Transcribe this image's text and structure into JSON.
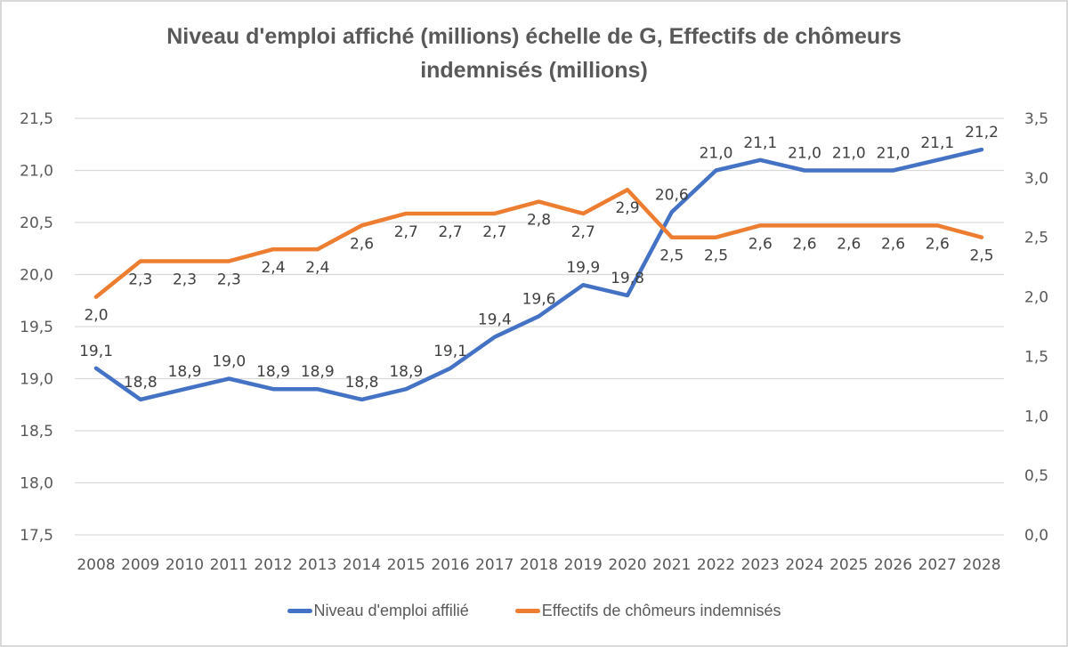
{
  "chart_data": {
    "type": "line",
    "title_lines": [
      "Niveau d'emploi affiché (millions) échelle de G, Effectifs de chômeurs",
      "indemnisés (millions)"
    ],
    "xlabel": "",
    "ylabel": "",
    "x": [
      "2008",
      "2009",
      "2010",
      "2011",
      "2012",
      "2013",
      "2014",
      "2015",
      "2016",
      "2017",
      "2018",
      "2019",
      "2020",
      "2021",
      "2022",
      "2023",
      "2024",
      "2025",
      "2026",
      "2027",
      "2028"
    ],
    "y_left": {
      "lim": [
        17.5,
        21.5
      ],
      "ticks": [
        "17,5",
        "18,0",
        "18,5",
        "19,0",
        "19,5",
        "20,0",
        "20,5",
        "21,0",
        "21,5"
      ]
    },
    "y_right": {
      "lim": [
        0.0,
        3.5
      ],
      "ticks": [
        "0,0",
        "0,5",
        "1,0",
        "1,5",
        "2,0",
        "2,5",
        "3,0",
        "3,5"
      ]
    },
    "grid": true,
    "legend_position": "bottom",
    "series": [
      {
        "name": "Niveau d'emploi affilié",
        "axis": "left",
        "color": "#4472c4",
        "values": [
          19.1,
          18.8,
          18.9,
          19.0,
          18.9,
          18.9,
          18.8,
          18.9,
          19.1,
          19.4,
          19.6,
          19.9,
          19.8,
          20.6,
          21.0,
          21.1,
          21.0,
          21.0,
          21.0,
          21.1,
          21.2
        ],
        "labels": [
          "19,1",
          "18,8",
          "18,9",
          "19,0",
          "18,9",
          "18,9",
          "18,8",
          "18,9",
          "19,1",
          "19,4",
          "19,6",
          "19,9",
          "19,8",
          "20,6",
          "21,0",
          "21,1",
          "21,0",
          "21,0",
          "21,0",
          "21,1",
          "21,2"
        ]
      },
      {
        "name": "Effectifs de chômeurs indemnisés",
        "axis": "right",
        "color": "#ed7d31",
        "values": [
          2.0,
          2.3,
          2.3,
          2.3,
          2.4,
          2.4,
          2.6,
          2.7,
          2.7,
          2.7,
          2.8,
          2.7,
          2.9,
          2.5,
          2.5,
          2.6,
          2.6,
          2.6,
          2.6,
          2.6,
          2.5
        ],
        "labels": [
          "2,0",
          "2,3",
          "2,3",
          "2,3",
          "2,4",
          "2,4",
          "2,6",
          "2,7",
          "2,7",
          "2,7",
          "2,8",
          "2,7",
          "2,9",
          "2,5",
          "2,5",
          "2,6",
          "2,6",
          "2,6",
          "2,6",
          "2,6",
          "2,5"
        ]
      }
    ]
  }
}
